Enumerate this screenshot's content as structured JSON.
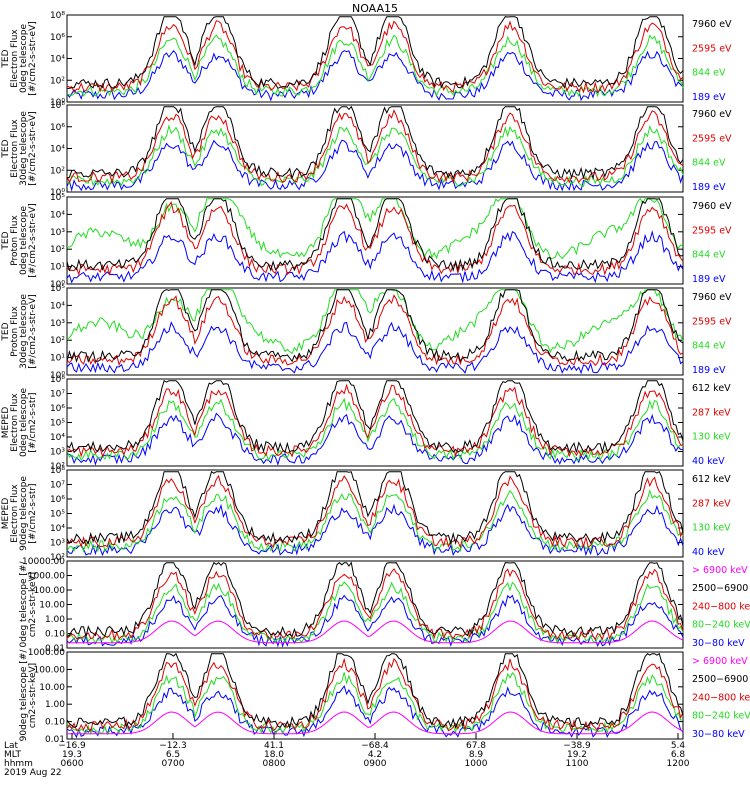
{
  "title": "NOAA15",
  "footer": {
    "row_labels": [
      "Lat",
      "MLT",
      "hhmm"
    ],
    "date": "2019 Aug 22",
    "ticks": [
      {
        "lat": "−16.9",
        "mlt": "19.3",
        "hhmm": "0600"
      },
      {
        "lat": "−12.3",
        "mlt": "6.5",
        "hhmm": "0700"
      },
      {
        "lat": "41.1",
        "mlt": "18.0",
        "hhmm": "0800"
      },
      {
        "lat": "−68.4",
        "mlt": "4.2",
        "hhmm": "0900"
      },
      {
        "lat": "67.8",
        "mlt": "8.9",
        "hhmm": "1000"
      },
      {
        "lat": "−38.9",
        "mlt": "19.2",
        "hhmm": "1100"
      },
      {
        "lat": "5.4",
        "mlt": "6.8",
        "hhmm": "1200"
      }
    ]
  },
  "colors": {
    "black": "#000000",
    "red": "#e00000",
    "green": "#22dd22",
    "blue": "#0000ff",
    "magenta": "#ff00ff"
  },
  "chart_data": [
    {
      "type": "line",
      "ylabel": [
        "TED",
        "Electron Flux",
        "0deg telescope",
        "[#/cm2-s-str-eV]"
      ],
      "yticks": [
        "10⁰",
        "10²",
        "10⁴",
        "10⁶",
        "10⁸"
      ],
      "ylim_log10": [
        0,
        8
      ],
      "series": [
        {
          "name": "7960 eV",
          "color": "black"
        },
        {
          "name": "2595 eV",
          "color": "red"
        },
        {
          "name": "844 eV",
          "color": "green"
        },
        {
          "name": "189 eV",
          "color": "blue"
        }
      ]
    },
    {
      "type": "line",
      "ylabel": [
        "TED",
        "Electron Flux",
        "30deg telescope",
        "[#/cm2-s-str-eV]"
      ],
      "yticks": [
        "10⁰",
        "10²",
        "10⁴",
        "10⁶",
        "10⁸"
      ],
      "ylim_log10": [
        0,
        8
      ],
      "series": [
        {
          "name": "7960 eV",
          "color": "black"
        },
        {
          "name": "2595 eV",
          "color": "red"
        },
        {
          "name": "844 eV",
          "color": "green"
        },
        {
          "name": "189 eV",
          "color": "blue"
        }
      ]
    },
    {
      "type": "line",
      "ylabel": [
        "TED",
        "Proton Flux",
        "0deg telescope",
        "[#/cm2-s-str-eV]"
      ],
      "yticks": [
        "10⁰",
        "10¹",
        "10²",
        "10³",
        "10⁴",
        "10⁵"
      ],
      "ylim_log10": [
        0,
        5
      ],
      "series": [
        {
          "name": "7960 eV",
          "color": "black"
        },
        {
          "name": "2595 eV",
          "color": "red"
        },
        {
          "name": "844 eV",
          "color": "green"
        },
        {
          "name": "189 eV",
          "color": "blue"
        }
      ]
    },
    {
      "type": "line",
      "ylabel": [
        "TED",
        "Proton Flux",
        "30deg telescope",
        "[#/cm2-s-str-eV]"
      ],
      "yticks": [
        "10⁰",
        "10¹",
        "10²",
        "10³",
        "10⁴",
        "10⁵"
      ],
      "ylim_log10": [
        0,
        5
      ],
      "series": [
        {
          "name": "7960 eV",
          "color": "black"
        },
        {
          "name": "2595 eV",
          "color": "red"
        },
        {
          "name": "844 eV",
          "color": "green"
        },
        {
          "name": "189 eV",
          "color": "blue"
        }
      ]
    },
    {
      "type": "line",
      "ylabel": [
        "MEPED",
        "Electron Flux",
        "0deg telescope",
        "[#/cm2-s-str]"
      ],
      "yticks": [
        "10²",
        "10³",
        "10⁴",
        "10⁵",
        "10⁶",
        "10⁷",
        "10⁸"
      ],
      "ylim_log10": [
        2,
        8
      ],
      "series": [
        {
          "name": "612 keV",
          "color": "black"
        },
        {
          "name": "287 keV",
          "color": "red"
        },
        {
          "name": "130 keV",
          "color": "green"
        },
        {
          "name": "40 keV",
          "color": "blue"
        }
      ]
    },
    {
      "type": "line",
      "ylabel": [
        "MEPED",
        "Electron Flux",
        "90deg telescope",
        "[#/cm2-s-str]"
      ],
      "yticks": [
        "10²",
        "10³",
        "10⁴",
        "10⁵",
        "10⁶",
        "10⁷",
        "10⁸"
      ],
      "ylim_log10": [
        2,
        8
      ],
      "series": [
        {
          "name": "612 keV",
          "color": "black"
        },
        {
          "name": "287 keV",
          "color": "red"
        },
        {
          "name": "130 keV",
          "color": "green"
        },
        {
          "name": "40 keV",
          "color": "blue"
        }
      ]
    },
    {
      "type": "line",
      "ylabel": [
        "0deg telescope [#/",
        "cm2-s-str-keV]"
      ],
      "yticks": [
        "0.01",
        "0.10",
        "1.00",
        "10.00",
        "100.00",
        "1000.00",
        "10000.00"
      ],
      "ylim_log10": [
        -2,
        4
      ],
      "series": [
        {
          "name": "> 6900 keV",
          "color": "magenta"
        },
        {
          "name": "2500−6900",
          "color": "black"
        },
        {
          "name": "240−800 ke",
          "color": "red"
        },
        {
          "name": "80−240 keV",
          "color": "green"
        },
        {
          "name": "30−80 keV",
          "color": "blue"
        }
      ]
    },
    {
      "type": "line",
      "ylabel": [
        "90deg telescope [#/",
        "cm2-s-str-keV]"
      ],
      "yticks": [
        "0.01",
        "0.10",
        "1.00",
        "10.00",
        "100.00",
        "1000.00"
      ],
      "ylim_log10": [
        -2,
        3
      ],
      "series": [
        {
          "name": "> 6900 keV",
          "color": "magenta"
        },
        {
          "name": "2500−6900",
          "color": "black"
        },
        {
          "name": "240−800 ke",
          "color": "red"
        },
        {
          "name": "80−240 keV",
          "color": "green"
        },
        {
          "name": "30−80 keV",
          "color": "blue"
        }
      ]
    }
  ]
}
